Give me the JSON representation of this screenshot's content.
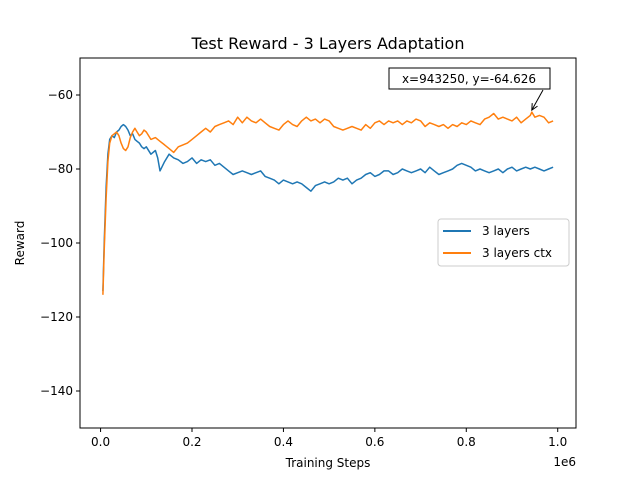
{
  "chart_data": {
    "type": "line",
    "title": "Test Reward - 3 Layers Adaptation",
    "xlabel": "Training Steps",
    "ylabel": "Reward",
    "x_offset_label": "1e6",
    "xlim": [
      -45000,
      1040000
    ],
    "ylim": [
      -150,
      -50
    ],
    "x_ticks": [
      0,
      200000,
      400000,
      600000,
      800000,
      1000000
    ],
    "x_tick_labels": [
      "0.0",
      "0.2",
      "0.4",
      "0.6",
      "0.8",
      "1.0"
    ],
    "y_ticks": [
      -140,
      -120,
      -100,
      -80,
      -60
    ],
    "y_tick_labels": [
      "−140",
      "−120",
      "−100",
      "−80",
      "−60"
    ],
    "grid": false,
    "legend_position": "center-right",
    "series": [
      {
        "name": "3 layers",
        "color": "#1f77b4",
        "x": [
          5000,
          8000,
          12000,
          16000,
          20000,
          25000,
          30000,
          35000,
          40000,
          45000,
          50000,
          55000,
          60000,
          65000,
          70000,
          75000,
          80000,
          85000,
          90000,
          95000,
          100000,
          110000,
          120000,
          125000,
          130000,
          140000,
          150000,
          160000,
          170000,
          180000,
          190000,
          200000,
          210000,
          220000,
          230000,
          240000,
          250000,
          260000,
          270000,
          280000,
          290000,
          300000,
          310000,
          320000,
          330000,
          340000,
          350000,
          360000,
          370000,
          380000,
          390000,
          400000,
          410000,
          420000,
          430000,
          440000,
          450000,
          460000,
          470000,
          480000,
          490000,
          500000,
          510000,
          520000,
          530000,
          540000,
          550000,
          560000,
          570000,
          580000,
          590000,
          600000,
          610000,
          620000,
          630000,
          640000,
          650000,
          660000,
          670000,
          680000,
          690000,
          700000,
          710000,
          720000,
          730000,
          740000,
          750000,
          760000,
          770000,
          780000,
          790000,
          800000,
          810000,
          820000,
          830000,
          840000,
          850000,
          860000,
          870000,
          880000,
          890000,
          900000,
          910000,
          920000,
          930000,
          940000,
          950000,
          960000,
          970000,
          980000,
          990000
        ],
        "y": [
          -113,
          -100,
          -85,
          -76,
          -72,
          -71,
          -71.5,
          -70,
          -69.5,
          -68.5,
          -68,
          -68.5,
          -69.5,
          -71,
          -70.5,
          -72,
          -72.5,
          -73,
          -74,
          -74.5,
          -74,
          -76,
          -75,
          -77,
          -80.5,
          -78,
          -76,
          -77,
          -77.5,
          -78.5,
          -78,
          -77,
          -78.5,
          -77.5,
          -78,
          -77.5,
          -79,
          -78.5,
          -79.5,
          -80.5,
          -81.5,
          -81,
          -80.5,
          -81,
          -81.5,
          -81,
          -80.5,
          -82,
          -82.5,
          -83,
          -84,
          -83,
          -83.5,
          -84,
          -83.5,
          -84,
          -85,
          -86,
          -84.5,
          -84,
          -83.5,
          -84,
          -83.5,
          -82.5,
          -83,
          -82.5,
          -84,
          -83,
          -82.5,
          -81.5,
          -81,
          -82,
          -81.5,
          -80.5,
          -80.5,
          -81.5,
          -81,
          -80,
          -80.5,
          -81,
          -80.5,
          -80,
          -81,
          -79.5,
          -80.5,
          -81.5,
          -81,
          -80.5,
          -80,
          -79,
          -78.5,
          -79,
          -79.5,
          -80.5,
          -80,
          -80.5,
          -81,
          -80.5,
          -80,
          -81,
          -80,
          -79.5,
          -80.5,
          -80,
          -79.5,
          -80,
          -79.5,
          -80,
          -80.5,
          -80,
          -79.5
        ]
      },
      {
        "name": "3 layers ctx",
        "color": "#ff7f0e",
        "x": [
          5000,
          8000,
          12000,
          16000,
          20000,
          25000,
          30000,
          35000,
          40000,
          45000,
          50000,
          55000,
          60000,
          65000,
          70000,
          75000,
          80000,
          85000,
          90000,
          95000,
          100000,
          110000,
          120000,
          130000,
          140000,
          150000,
          160000,
          170000,
          180000,
          190000,
          200000,
          210000,
          220000,
          230000,
          240000,
          250000,
          260000,
          270000,
          280000,
          290000,
          300000,
          310000,
          320000,
          330000,
          340000,
          350000,
          360000,
          370000,
          380000,
          390000,
          400000,
          410000,
          420000,
          430000,
          440000,
          450000,
          460000,
          470000,
          480000,
          490000,
          500000,
          510000,
          520000,
          530000,
          540000,
          550000,
          560000,
          570000,
          580000,
          590000,
          600000,
          610000,
          620000,
          630000,
          640000,
          650000,
          660000,
          670000,
          680000,
          690000,
          700000,
          710000,
          720000,
          730000,
          740000,
          750000,
          760000,
          770000,
          780000,
          790000,
          800000,
          810000,
          820000,
          830000,
          840000,
          850000,
          860000,
          870000,
          880000,
          890000,
          900000,
          910000,
          920000,
          930000,
          940000,
          943250,
          950000,
          960000,
          970000,
          980000,
          990000
        ],
        "y": [
          -114,
          -102,
          -88,
          -78,
          -73,
          -71,
          -70.5,
          -70,
          -71,
          -73,
          -74.5,
          -75,
          -74,
          -71.5,
          -70,
          -69,
          -70,
          -71,
          -70.5,
          -69.5,
          -70,
          -72,
          -71.5,
          -72.5,
          -73.5,
          -74.5,
          -75.5,
          -74,
          -73.5,
          -73,
          -72,
          -71,
          -70,
          -69,
          -70,
          -68.5,
          -68,
          -67.5,
          -67,
          -68,
          -66,
          -67.5,
          -66,
          -67,
          -67.5,
          -66.5,
          -67.5,
          -68.5,
          -69,
          -69.5,
          -68,
          -67,
          -68,
          -68.5,
          -67,
          -66,
          -67,
          -66.5,
          -67.5,
          -66.5,
          -67,
          -68.5,
          -69,
          -69.5,
          -69,
          -68.5,
          -69,
          -69.5,
          -68,
          -69,
          -67.5,
          -67,
          -68,
          -67,
          -67.5,
          -67,
          -68,
          -67,
          -67.5,
          -66.5,
          -67,
          -68.5,
          -67.5,
          -68,
          -68.5,
          -68,
          -69,
          -68,
          -68.5,
          -67.5,
          -68,
          -67,
          -67.5,
          -68,
          -66.5,
          -66,
          -65,
          -66.5,
          -66,
          -66.5,
          -67,
          -66,
          -67.5,
          -66.5,
          -65.5,
          -64.626,
          -66,
          -65.5,
          -66,
          -67.5,
          -67
        ]
      }
    ],
    "annotation": {
      "text": "x=943250, y=-64.626",
      "x": 943250,
      "y": -64.626
    }
  }
}
